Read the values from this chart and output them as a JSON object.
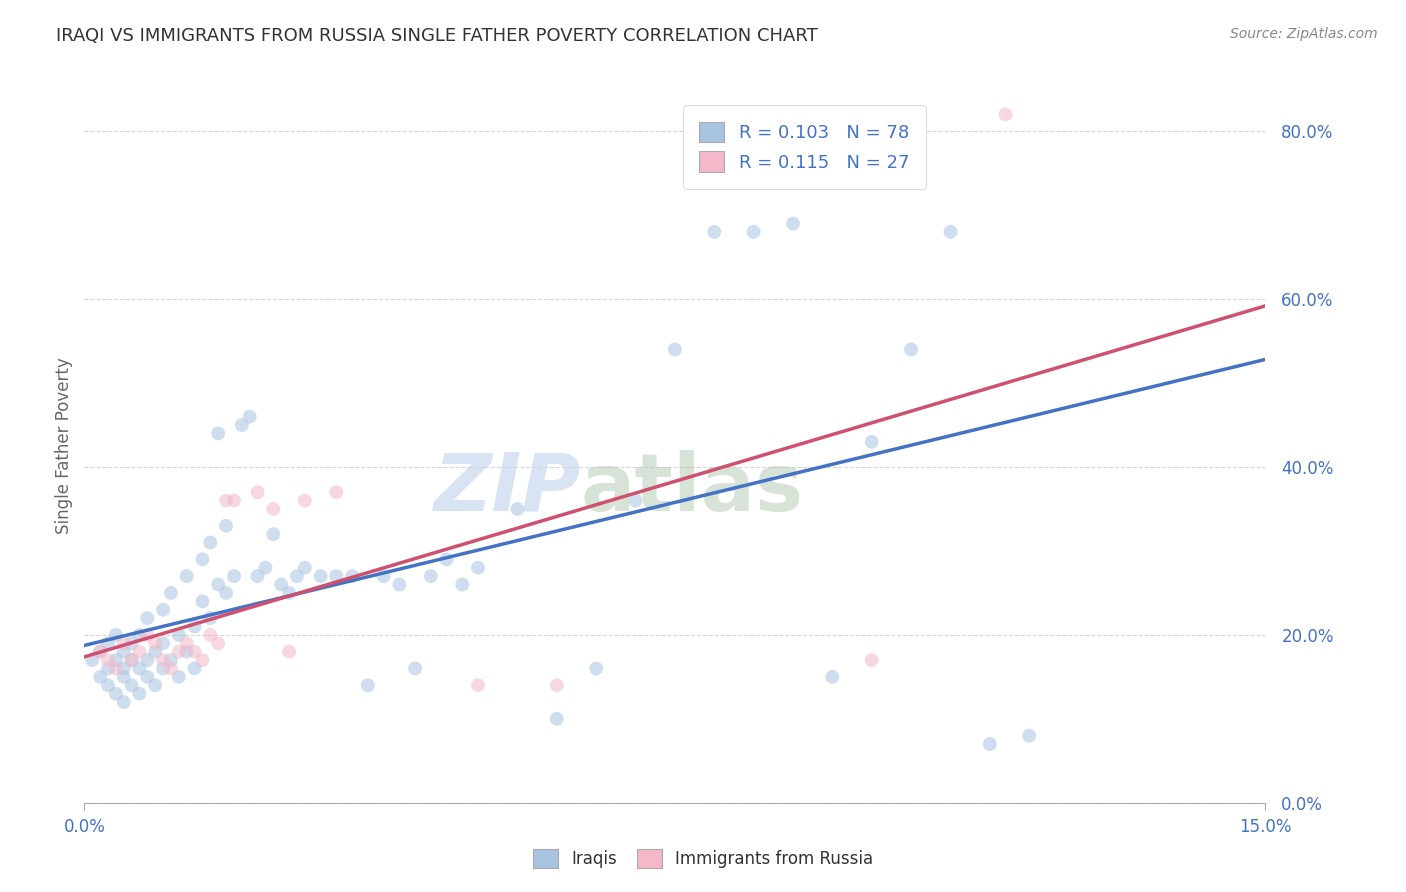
{
  "title": "IRAQI VS IMMIGRANTS FROM RUSSIA SINGLE FATHER POVERTY CORRELATION CHART",
  "source": "Source: ZipAtlas.com",
  "ylabel_label": "Single Father Poverty",
  "xlim": [
    0.0,
    0.15
  ],
  "ylim": [
    0.0,
    0.85
  ],
  "ytick_vals": [
    0.0,
    0.2,
    0.4,
    0.6,
    0.8
  ],
  "ytick_labels": [
    "0.0%",
    "20.0%",
    "40.0%",
    "60.0%",
    "80.0%"
  ],
  "xtick_vals": [
    0.0,
    0.15
  ],
  "xtick_labels": [
    "0.0%",
    "15.0%"
  ],
  "iraqis_x": [
    0.001,
    0.002,
    0.002,
    0.003,
    0.003,
    0.003,
    0.004,
    0.004,
    0.004,
    0.005,
    0.005,
    0.005,
    0.005,
    0.006,
    0.006,
    0.006,
    0.007,
    0.007,
    0.007,
    0.008,
    0.008,
    0.008,
    0.009,
    0.009,
    0.01,
    0.01,
    0.01,
    0.011,
    0.011,
    0.012,
    0.012,
    0.013,
    0.013,
    0.014,
    0.014,
    0.015,
    0.015,
    0.016,
    0.016,
    0.017,
    0.017,
    0.018,
    0.018,
    0.019,
    0.02,
    0.021,
    0.022,
    0.023,
    0.024,
    0.025,
    0.026,
    0.027,
    0.028,
    0.03,
    0.032,
    0.034,
    0.036,
    0.038,
    0.04,
    0.042,
    0.044,
    0.046,
    0.048,
    0.05,
    0.055,
    0.06,
    0.065,
    0.07,
    0.075,
    0.08,
    0.085,
    0.09,
    0.095,
    0.1,
    0.105,
    0.11,
    0.115,
    0.12
  ],
  "iraqis_y": [
    0.17,
    0.15,
    0.18,
    0.14,
    0.16,
    0.19,
    0.13,
    0.17,
    0.2,
    0.15,
    0.18,
    0.16,
    0.12,
    0.17,
    0.14,
    0.19,
    0.16,
    0.2,
    0.13,
    0.17,
    0.15,
    0.22,
    0.18,
    0.14,
    0.19,
    0.16,
    0.23,
    0.17,
    0.25,
    0.2,
    0.15,
    0.27,
    0.18,
    0.21,
    0.16,
    0.24,
    0.29,
    0.22,
    0.31,
    0.26,
    0.44,
    0.25,
    0.33,
    0.27,
    0.45,
    0.46,
    0.27,
    0.28,
    0.32,
    0.26,
    0.25,
    0.27,
    0.28,
    0.27,
    0.27,
    0.27,
    0.14,
    0.27,
    0.26,
    0.16,
    0.27,
    0.29,
    0.26,
    0.28,
    0.35,
    0.1,
    0.16,
    0.36,
    0.54,
    0.68,
    0.68,
    0.69,
    0.15,
    0.43,
    0.54,
    0.68,
    0.07,
    0.08
  ],
  "russia_x": [
    0.002,
    0.003,
    0.004,
    0.005,
    0.006,
    0.007,
    0.008,
    0.009,
    0.01,
    0.011,
    0.012,
    0.013,
    0.014,
    0.015,
    0.016,
    0.017,
    0.018,
    0.019,
    0.022,
    0.024,
    0.026,
    0.028,
    0.032,
    0.05,
    0.06,
    0.1,
    0.117
  ],
  "russia_y": [
    0.18,
    0.17,
    0.16,
    0.19,
    0.17,
    0.18,
    0.2,
    0.19,
    0.17,
    0.16,
    0.18,
    0.19,
    0.18,
    0.17,
    0.2,
    0.19,
    0.36,
    0.36,
    0.37,
    0.35,
    0.18,
    0.36,
    0.37,
    0.14,
    0.14,
    0.17,
    0.82
  ],
  "iraqis_color": "#a8c4e0",
  "russia_color": "#f4b8c8",
  "iraqis_line_color": "#4472c4",
  "russia_line_color": "#d05070",
  "iraqis_r": 0.103,
  "iraqis_n": 78,
  "russia_r": 0.115,
  "russia_n": 27,
  "legend_label_iraqis": "Iraqis",
  "legend_label_russia": "Immigrants from Russia",
  "watermark_zip": "ZIP",
  "watermark_atlas": "atlas",
  "background_color": "#ffffff",
  "grid_color": "#cccccc",
  "title_color": "#333333",
  "axis_label_color": "#666666",
  "tick_label_color": "#4472c4",
  "marker_size": 100,
  "marker_alpha": 0.55,
  "line_width": 2.5
}
